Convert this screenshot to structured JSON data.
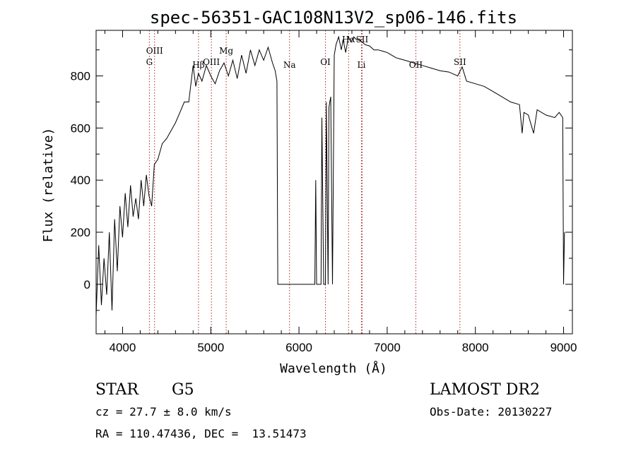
{
  "chart_data": {
    "type": "line",
    "title": "spec-56351-GAC108N13V2_sp06-146.fits",
    "xlabel": "Wavelength (Å)",
    "ylabel": "Flux (relative)",
    "xlim": [
      3700,
      9100
    ],
    "ylim": [
      -190,
      975
    ],
    "x_ticks": [
      4000,
      5000,
      6000,
      7000,
      8000,
      9000
    ],
    "y_ticks": [
      0,
      200,
      400,
      600,
      800
    ],
    "grid": false,
    "line_color": "#000000",
    "marker_color": "#b22222",
    "series": [
      {
        "x": [
          3700,
          3730,
          3760,
          3790,
          3820,
          3850,
          3880,
          3910,
          3940,
          3970,
          4000,
          4030,
          4060,
          4090,
          4120,
          4150,
          4180,
          4210,
          4240,
          4270,
          4300,
          4330,
          4360,
          4400,
          4450,
          4500,
          4550,
          4600,
          4650,
          4700,
          4750,
          4800,
          4830,
          4860,
          4900,
          4950,
          5000,
          5050,
          5100,
          5150,
          5200,
          5250,
          5300,
          5350,
          5400,
          5450,
          5500,
          5550,
          5600,
          5650,
          5700,
          5730,
          5750,
          5760,
          5800,
          6000,
          6180,
          6190,
          6200,
          6250,
          6260,
          6280,
          6300,
          6310,
          6330,
          6340,
          6360,
          6380,
          6400,
          6420,
          6450,
          6480,
          6500,
          6530,
          6560,
          6590,
          6620,
          6650,
          6700,
          6750,
          6800,
          6850,
          6900,
          6950,
          7000,
          7050,
          7100,
          7150,
          7200,
          7300,
          7400,
          7500,
          7600,
          7700,
          7800,
          7850,
          7900,
          8000,
          8100,
          8200,
          8300,
          8400,
          8500,
          8530,
          8550,
          8600,
          8660,
          8700,
          8800,
          8900,
          8950,
          8990,
          9000,
          9010
        ],
        "y": [
          -120,
          150,
          -80,
          100,
          -40,
          200,
          -100,
          250,
          50,
          300,
          180,
          350,
          220,
          380,
          260,
          330,
          250,
          400,
          300,
          420,
          340,
          300,
          460,
          480,
          540,
          560,
          590,
          620,
          660,
          700,
          700,
          840,
          760,
          810,
          780,
          840,
          800,
          770,
          820,
          850,
          800,
          860,
          790,
          880,
          810,
          900,
          840,
          900,
          860,
          910,
          850,
          820,
          780,
          0,
          0,
          0,
          0,
          400,
          0,
          0,
          640,
          0,
          0,
          700,
          0,
          680,
          720,
          0,
          880,
          920,
          950,
          900,
          940,
          890,
          950,
          930,
          950,
          940,
          935,
          920,
          915,
          900,
          900,
          895,
          890,
          880,
          870,
          865,
          860,
          850,
          840,
          830,
          820,
          815,
          800,
          835,
          780,
          770,
          760,
          740,
          720,
          700,
          690,
          580,
          660,
          650,
          580,
          670,
          650,
          640,
          660,
          640,
          0,
          200
        ]
      }
    ],
    "annotations": [
      {
        "label": "OIII",
        "x": 4363,
        "row": 1
      },
      {
        "label": "G",
        "x": 4304,
        "row": 2
      },
      {
        "label": "Hβ",
        "x": 4861,
        "row": 3
      },
      {
        "label": "Mg",
        "x": 5175,
        "row": 1
      },
      {
        "label": "OIII",
        "x": 5007,
        "row": 2
      },
      {
        "label": "Na",
        "x": 5893,
        "row": 3
      },
      {
        "label": "OI",
        "x": 6300,
        "row": 2
      },
      {
        "label": "Hα",
        "x": 6563,
        "row": 0
      },
      {
        "label": "SII",
        "x": 6716,
        "row": 0
      },
      {
        "label": "Li",
        "x": 6708,
        "row": 3
      },
      {
        "label": "OII",
        "x": 7325,
        "row": 3
      },
      {
        "label": "SII",
        "x": 7825,
        "row": 2
      }
    ]
  },
  "info": {
    "object_class": "STAR",
    "subclass": "G5",
    "survey": "LAMOST DR2",
    "cz": "cz = 27.7 ± 8.0 km/s",
    "obs_date": "Obs-Date: 20130227",
    "coords": "RA = 110.47436, DEC =  13.51473"
  }
}
